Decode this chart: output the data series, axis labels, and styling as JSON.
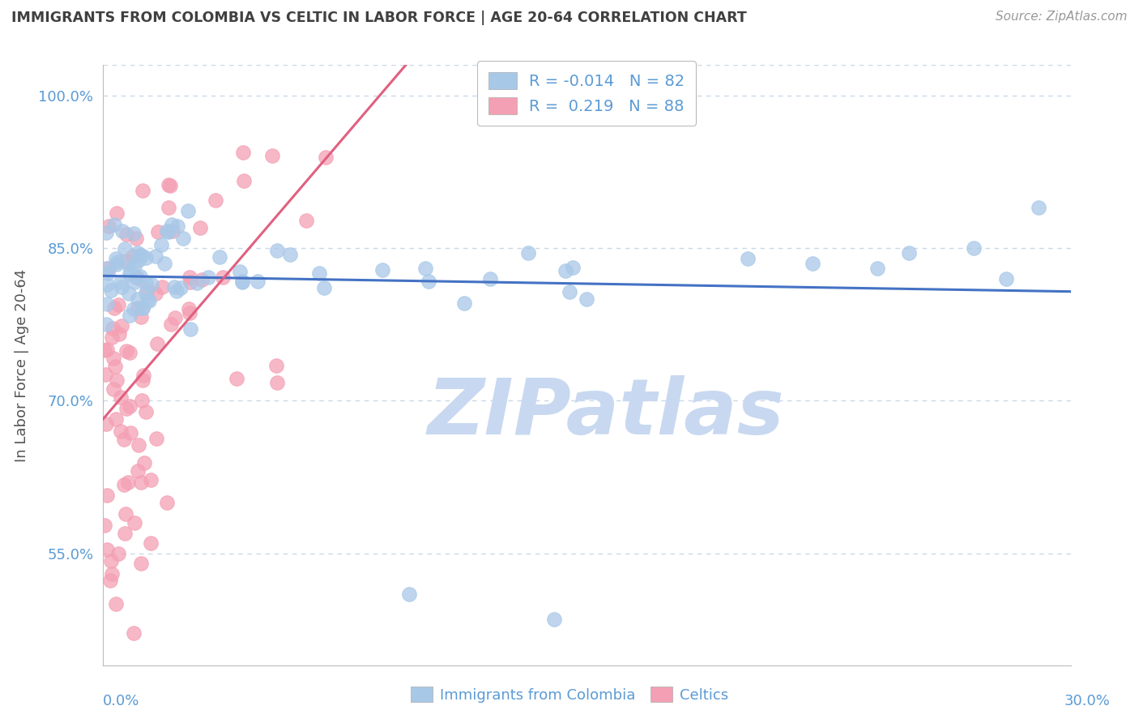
{
  "title": "IMMIGRANTS FROM COLOMBIA VS CELTIC IN LABOR FORCE | AGE 20-64 CORRELATION CHART",
  "source": "Source: ZipAtlas.com",
  "ylabel": "In Labor Force | Age 20-64",
  "xmin": 0.0,
  "xmax": 30.0,
  "ymin": 44.0,
  "ymax": 103.0,
  "colombia_R": -0.014,
  "colombia_N": 82,
  "celtics_R": 0.219,
  "celtics_N": 88,
  "colombia_color": "#A8C8E8",
  "celtics_color": "#F4A0B4",
  "colombia_line_color": "#4472C4",
  "celtics_line_color": "#E06080",
  "watermark_color": "#C8D8F0",
  "title_color": "#404040",
  "axis_color": "#5B9BD5",
  "grid_color": "#C8D8E8",
  "ytick_vals": [
    55.0,
    70.0,
    85.0,
    100.0
  ]
}
